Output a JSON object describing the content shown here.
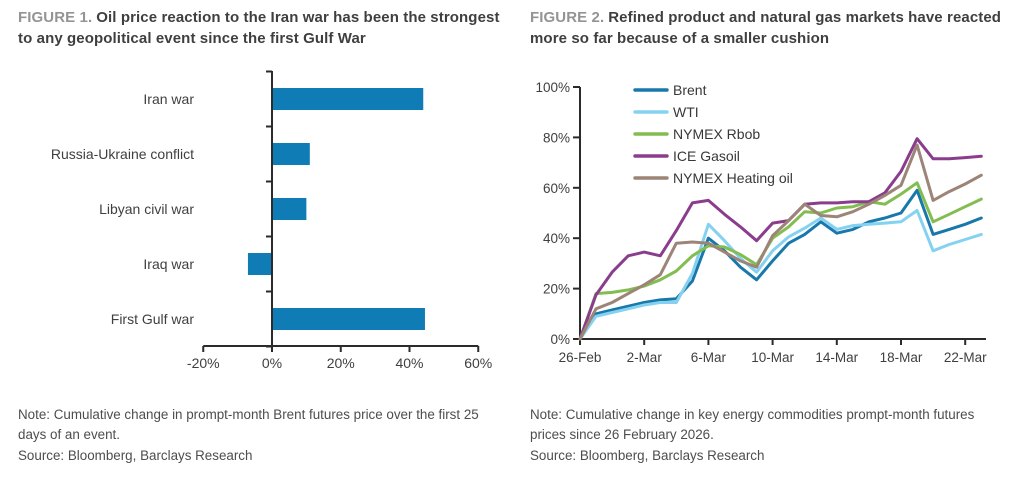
{
  "chart_data": [
    {
      "type": "bar",
      "orientation": "horizontal",
      "label": "FIGURE 1.",
      "title": "Oil price reaction to the Iran war has been the strongest to any geopolitical event since the first Gulf War",
      "note": "Note: Cumulative change in prompt-month Brent futures price over the first 25 days of an event.",
      "source": "Source: Bloomberg, Barclays Research",
      "categories": [
        "Iran war",
        "Russia-Ukraine conflict",
        "Libyan civil war",
        "Iraq war",
        "First Gulf war"
      ],
      "values": [
        44,
        11,
        10,
        -7,
        44.5
      ],
      "value_unit": "%",
      "xlim": [
        -20,
        60
      ],
      "x_ticks": [
        "-20%",
        "0%",
        "20%",
        "40%",
        "60%"
      ],
      "x_tick_values": [
        -20,
        0,
        20,
        40,
        60
      ],
      "bar_color": "#0f7cb5",
      "axis_color": "#2b2b2b",
      "grid": "off"
    },
    {
      "type": "line",
      "label": "FIGURE 2.",
      "title": "Refined product and natural gas markets have reacted more so far because of a smaller cushion",
      "note": "Note: Cumulative change in key energy commodities prompt-month futures prices since 26 February 2026.",
      "source": "Source: Bloomberg, Barclays Research",
      "x_dates": [
        "26-Feb",
        "27-Feb",
        "28-Feb",
        "1-Mar",
        "2-Mar",
        "3-Mar",
        "4-Mar",
        "5-Mar",
        "6-Mar",
        "7-Mar",
        "8-Mar",
        "9-Mar",
        "10-Mar",
        "11-Mar",
        "12-Mar",
        "13-Mar",
        "14-Mar",
        "15-Mar",
        "16-Mar",
        "17-Mar",
        "18-Mar",
        "19-Mar",
        "20-Mar",
        "21-Mar",
        "22-Mar",
        "23-Mar"
      ],
      "x_tick_labels": [
        "26-Feb",
        "2-Mar",
        "6-Mar",
        "10-Mar",
        "14-Mar",
        "18-Mar",
        "22-Mar"
      ],
      "x_tick_days": [
        0,
        4,
        8,
        12,
        16,
        20,
        24
      ],
      "ylim": [
        0,
        100
      ],
      "y_ticks": [
        "0%",
        "20%",
        "40%",
        "60%",
        "80%",
        "100%"
      ],
      "y_tick_values": [
        0,
        20,
        40,
        60,
        80,
        100
      ],
      "value_unit": "%",
      "legend_position": "top-left-inside",
      "grid": "off",
      "axis_color": "#2b2b2b",
      "series": [
        {
          "name": "Brent",
          "color": "#1878ab",
          "values": [
            0,
            10,
            11.5,
            13,
            14.5,
            15.5,
            16,
            23,
            40,
            35,
            28.5,
            23.5,
            31,
            38,
            41.5,
            46.5,
            42,
            43.5,
            46.5,
            48,
            50,
            59,
            41.5,
            43.5,
            45.5,
            48
          ]
        },
        {
          "name": "WTI",
          "color": "#85d2f0",
          "values": [
            0,
            9,
            10.5,
            12,
            13.5,
            14.5,
            14.5,
            26,
            45.5,
            39,
            32,
            26.5,
            35,
            40.5,
            44,
            48,
            43.5,
            45,
            45.5,
            46,
            46.5,
            51,
            35,
            37.5,
            39.5,
            41.5
          ]
        },
        {
          "name": "NYMEX Rbob",
          "color": "#83bd51",
          "values": [
            0,
            18,
            18.5,
            19.5,
            21,
            23.5,
            27,
            33,
            37,
            36.5,
            33.5,
            29.5,
            40,
            44.5,
            50.5,
            50,
            52,
            52.5,
            54.5,
            53.5,
            57.5,
            62,
            46.5,
            49.5,
            52.5,
            55.5
          ]
        },
        {
          "name": "ICE Gasoil",
          "color": "#8b3d8d",
          "values": [
            0,
            17.5,
            26.5,
            33,
            34.5,
            33,
            43,
            54,
            55,
            49.5,
            44.5,
            39,
            46,
            47,
            53.5,
            54,
            54,
            54.5,
            54.5,
            58,
            66.5,
            79.5,
            71.5,
            71.5,
            72,
            72.5
          ]
        },
        {
          "name": "NYMEX Heating oil",
          "color": "#9c8476",
          "values": [
            0,
            12,
            14.5,
            18,
            21.5,
            25.5,
            38,
            38.5,
            38,
            34.5,
            31,
            28.5,
            41,
            47,
            53.5,
            49,
            48.5,
            50.5,
            53.5,
            57,
            61,
            77,
            55,
            58.5,
            61.5,
            65
          ]
        }
      ]
    }
  ]
}
